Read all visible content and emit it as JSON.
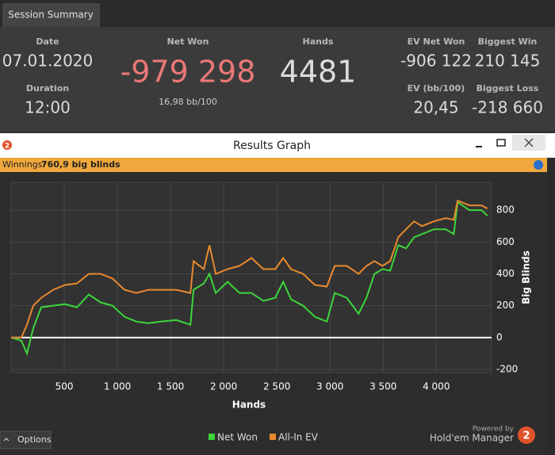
{
  "tab": "Session Summary",
  "stats": {
    "date_label": "Date",
    "date": "07.01.2020",
    "duration_label": "Duration",
    "duration": "12:00",
    "net_won_label": "Net Won",
    "net_won": "-979 298",
    "bb_per_100": "16,98 bb/100",
    "hands_label": "Hands",
    "hands": "4481",
    "ev_net_won_label": "EV Net Won",
    "ev_net_won": "-906 122",
    "biggest_win_label": "Biggest Win",
    "biggest_win": "210 145",
    "ev_bb_label": "EV (bb/100)",
    "ev_bb": "20,45",
    "biggest_loss_label": "Biggest Loss",
    "biggest_loss": "-218 660"
  },
  "window": {
    "logo": "2",
    "title": "Results Graph",
    "winnings_label": "Winnings:",
    "winnings_value": "760,9 big blinds"
  },
  "chart_data": {
    "type": "line",
    "xlabel": "Hands",
    "ylabel": "Big Blinds",
    "x": [
      0,
      97,
      149,
      209,
      284,
      396,
      507,
      619,
      731,
      843,
      955,
      1067,
      1179,
      1291,
      1403,
      1552,
      1687,
      1716,
      1813,
      1866,
      1925,
      2037,
      2149,
      2261,
      2373,
      2485,
      2560,
      2634,
      2746,
      2858,
      2970,
      3045,
      3157,
      3269,
      3343,
      3418,
      3493,
      3567,
      3642,
      3716,
      3791,
      3866,
      3978,
      4090,
      4164,
      4201,
      4313,
      4425,
      4481
    ],
    "series": [
      {
        "name": "Net Won",
        "color": "#3cd63c",
        "values": [
          0,
          -20,
          -100,
          60,
          190,
          200,
          210,
          190,
          270,
          220,
          200,
          130,
          100,
          90,
          100,
          110,
          80,
          300,
          340,
          400,
          280,
          350,
          280,
          280,
          230,
          250,
          350,
          240,
          200,
          130,
          100,
          280,
          250,
          150,
          250,
          400,
          430,
          420,
          580,
          560,
          630,
          650,
          680,
          680,
          650,
          850,
          800,
          800,
          765
        ]
      },
      {
        "name": "All-In EV",
        "color": "#e8892e",
        "values": [
          0,
          0,
          80,
          200,
          250,
          300,
          330,
          340,
          400,
          400,
          370,
          300,
          280,
          300,
          300,
          300,
          280,
          480,
          430,
          580,
          400,
          430,
          450,
          500,
          430,
          430,
          500,
          430,
          400,
          330,
          320,
          450,
          450,
          400,
          450,
          480,
          450,
          480,
          630,
          680,
          730,
          700,
          730,
          750,
          740,
          860,
          830,
          830,
          810
        ]
      }
    ],
    "xlim": [
      0,
      4520
    ],
    "ylim": [
      -220,
      975
    ],
    "xticks": [
      500,
      {
        "value": 1000,
        "label": "1 000"
      },
      {
        "value": 1500,
        "label": "1 500"
      },
      {
        "value": 2000,
        "label": "2 000"
      },
      {
        "value": 2500,
        "label": "2 500"
      },
      {
        "value": 3000,
        "label": "3 000"
      },
      {
        "value": 3500,
        "label": "3 500"
      },
      {
        "value": 4000,
        "label": "4 000"
      }
    ],
    "yticks": [
      -200,
      0,
      200,
      400,
      600,
      800
    ],
    "grid": true
  },
  "footer": {
    "options": "Options",
    "powered_by": "Powered by",
    "brand": "Hold'em Manager",
    "logo": "2"
  }
}
